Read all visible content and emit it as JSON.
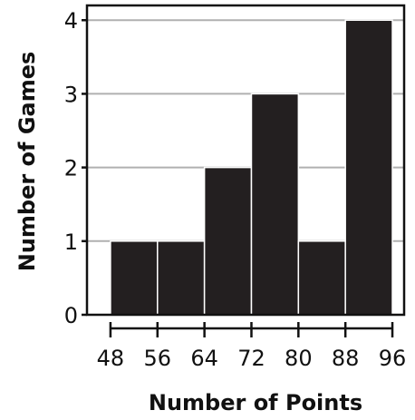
{
  "chart_data": {
    "type": "bar",
    "subtype": "histogram",
    "bins": [
      {
        "start": 48,
        "end": 56,
        "value": 1
      },
      {
        "start": 56,
        "end": 64,
        "value": 1
      },
      {
        "start": 64,
        "end": 72,
        "value": 2
      },
      {
        "start": 72,
        "end": 80,
        "value": 3
      },
      {
        "start": 80,
        "end": 88,
        "value": 1
      },
      {
        "start": 88,
        "end": 96,
        "value": 4
      }
    ],
    "x_ticks": [
      "48",
      "56",
      "64",
      "72",
      "80",
      "88",
      "96"
    ],
    "x_tick_values": [
      48,
      56,
      64,
      72,
      80,
      88,
      96
    ],
    "y_ticks": [
      "0",
      "1",
      "2",
      "3",
      "4"
    ],
    "y_tick_values": [
      0,
      1,
      2,
      3,
      4
    ],
    "xlabel": "Number of Points",
    "ylabel": "Number of Games",
    "xlim": [
      44,
      98
    ],
    "ylim": [
      0,
      4.2
    ],
    "grid": "horizontal",
    "bar_color": "#231f20",
    "grid_color": "#b0b0b0",
    "axis_color": "#111111"
  }
}
